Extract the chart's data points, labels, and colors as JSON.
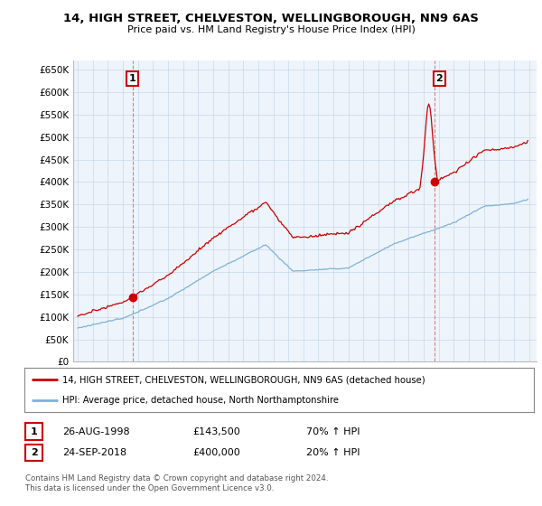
{
  "title": "14, HIGH STREET, CHELVESTON, WELLINGBOROUGH, NN9 6AS",
  "subtitle": "Price paid vs. HM Land Registry's House Price Index (HPI)",
  "ylabel_ticks": [
    "£0",
    "£50K",
    "£100K",
    "£150K",
    "£200K",
    "£250K",
    "£300K",
    "£350K",
    "£400K",
    "£450K",
    "£500K",
    "£550K",
    "£600K",
    "£650K"
  ],
  "ytick_values": [
    0,
    50000,
    100000,
    150000,
    200000,
    250000,
    300000,
    350000,
    400000,
    450000,
    500000,
    550000,
    600000,
    650000
  ],
  "sale1_date": 1998.65,
  "sale1_price": 143500,
  "sale2_date": 2018.73,
  "sale2_price": 400000,
  "red_color": "#cc0000",
  "blue_color": "#7fb2d8",
  "legend_label1": "14, HIGH STREET, CHELVESTON, WELLINGBOROUGH, NN9 6AS (detached house)",
  "legend_label2": "HPI: Average price, detached house, North Northamptonshire",
  "table_row1": [
    "1",
    "26-AUG-1998",
    "£143,500",
    "70% ↑ HPI"
  ],
  "table_row2": [
    "2",
    "24-SEP-2018",
    "£400,000",
    "20% ↑ HPI"
  ],
  "footnote": "Contains HM Land Registry data © Crown copyright and database right 2024.\nThis data is licensed under the Open Government Licence v3.0.",
  "bg_color": "#ffffff",
  "chart_bg": "#eef4fb",
  "grid_color": "#c8d8e8"
}
